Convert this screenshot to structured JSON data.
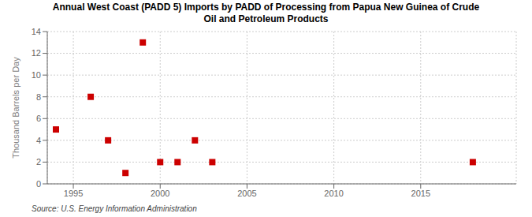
{
  "chart_data": {
    "type": "scatter",
    "title": "Annual West Coast (PADD 5) Imports by PADD of Processing from Papua New Guinea of Crude\nOil and Petroleum Products",
    "ylabel": "Thousand Barrels per Day",
    "annotations": [
      "Source: U.S. Energy Information Administration"
    ],
    "x": [
      1994,
      1996,
      1997,
      1998,
      1999,
      2000,
      2001,
      2002,
      2003,
      2018
    ],
    "values": [
      5,
      8,
      4,
      1,
      13,
      2,
      2,
      4,
      2,
      2
    ],
    "color": "#cc0000",
    "marker": "square",
    "xlim": [
      1993.5,
      2020.5
    ],
    "ylim": [
      0,
      14
    ],
    "xticks": [
      1995,
      2000,
      2005,
      2010,
      2015
    ],
    "yticks": [
      0,
      2,
      4,
      6,
      8,
      10,
      12,
      14
    ],
    "grid": true
  }
}
